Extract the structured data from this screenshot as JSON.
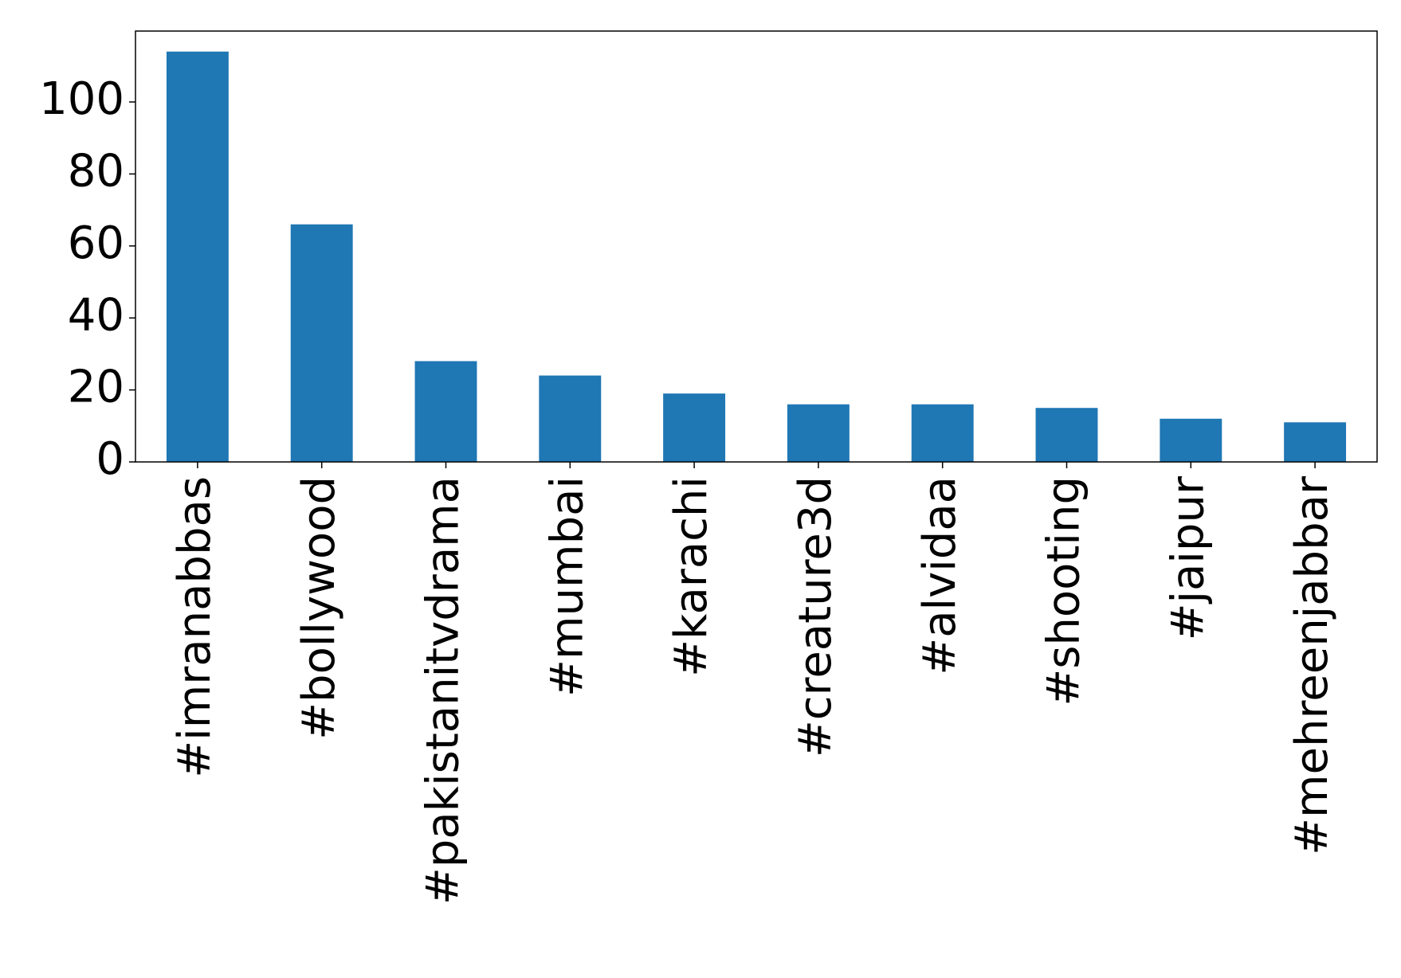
{
  "chart_data": {
    "type": "bar",
    "categories": [
      "#imranabbas",
      "#bollywood",
      "#pakistanitvdrama",
      "#mumbai",
      "#karachi",
      "#creature3d",
      "#alvidaa",
      "#shooting",
      "#jaipur",
      "#mehreenjabbar"
    ],
    "values": [
      114,
      66,
      28,
      24,
      19,
      16,
      16,
      15,
      12,
      11
    ],
    "color": "#1f77b4",
    "ylim": [
      0,
      119.7
    ],
    "yticks": [
      0,
      20,
      40,
      60,
      80,
      100
    ],
    "grid": false
  }
}
